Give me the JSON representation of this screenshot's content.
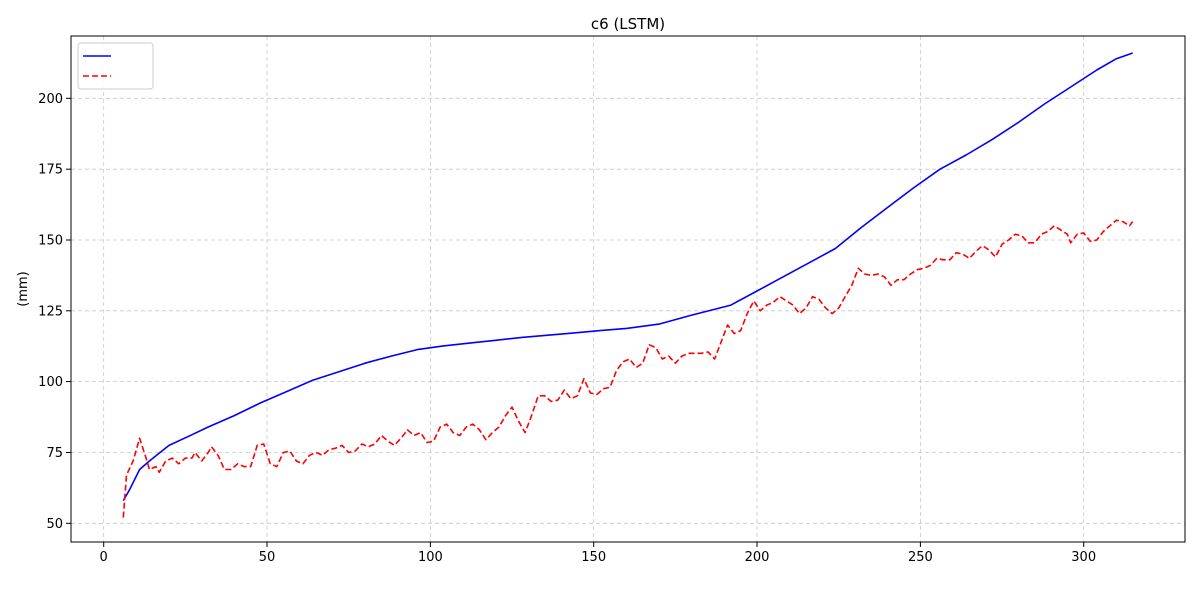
{
  "chart_data": {
    "type": "line",
    "title_prefix": "c6",
    "title_suffix": "(LSTM)",
    "xlabel": "",
    "ylabel_suffix": "(mm)",
    "xlim": [
      -10,
      331
    ],
    "ylim": [
      43.4,
      222.0
    ],
    "xticks": [
      0,
      50,
      100,
      150,
      200,
      250,
      300
    ],
    "yticks": [
      50,
      75,
      100,
      125,
      150,
      175,
      200
    ],
    "grid": true,
    "legend_position": "top-left",
    "series": [
      {
        "name": "",
        "color": "#0000ff",
        "style": "solid",
        "points": [
          [
            6,
            58
          ],
          [
            8,
            62
          ],
          [
            11,
            69
          ],
          [
            14,
            72
          ],
          [
            20,
            77.5
          ],
          [
            26,
            80.7
          ],
          [
            32,
            84
          ],
          [
            40,
            88
          ],
          [
            48,
            92.5
          ],
          [
            56,
            96.5
          ],
          [
            64,
            100.5
          ],
          [
            72,
            103.5
          ],
          [
            80,
            106.5
          ],
          [
            88,
            109
          ],
          [
            96,
            111.3
          ],
          [
            104,
            112.6
          ],
          [
            112,
            113.6
          ],
          [
            120,
            114.6
          ],
          [
            128,
            115.6
          ],
          [
            136,
            116.4
          ],
          [
            144,
            117.2
          ],
          [
            152,
            118
          ],
          [
            160,
            118.8
          ],
          [
            170,
            120.3
          ],
          [
            180,
            123.5
          ],
          [
            192,
            127
          ],
          [
            200,
            132
          ],
          [
            208,
            137
          ],
          [
            216,
            142
          ],
          [
            224,
            147
          ],
          [
            232,
            154.5
          ],
          [
            240,
            161.5
          ],
          [
            248,
            168.5
          ],
          [
            256,
            175
          ],
          [
            264,
            180
          ],
          [
            272,
            185.5
          ],
          [
            280,
            191.5
          ],
          [
            288,
            198
          ],
          [
            296,
            204
          ],
          [
            304,
            210
          ],
          [
            310,
            214
          ],
          [
            315,
            216
          ]
        ]
      },
      {
        "name": "",
        "color": "#ff0000",
        "style": "dashed",
        "points": [
          [
            6,
            52
          ],
          [
            7,
            67
          ],
          [
            9,
            72
          ],
          [
            11,
            80
          ],
          [
            13,
            73
          ],
          [
            14,
            69
          ],
          [
            16,
            70
          ],
          [
            17,
            68
          ],
          [
            19,
            72
          ],
          [
            21,
            73
          ],
          [
            23,
            71
          ],
          [
            25,
            73
          ],
          [
            27,
            73
          ],
          [
            28,
            75
          ],
          [
            30,
            72
          ],
          [
            32,
            75
          ],
          [
            33,
            77
          ],
          [
            35,
            74
          ],
          [
            37,
            69
          ],
          [
            39,
            69
          ],
          [
            41,
            71
          ],
          [
            43,
            70
          ],
          [
            45,
            70
          ],
          [
            47,
            77.5
          ],
          [
            49,
            78
          ],
          [
            51,
            71
          ],
          [
            53,
            70
          ],
          [
            55,
            75
          ],
          [
            57,
            75.5
          ],
          [
            59,
            72
          ],
          [
            61,
            71
          ],
          [
            63,
            74
          ],
          [
            65,
            75
          ],
          [
            67,
            74
          ],
          [
            69,
            76
          ],
          [
            71,
            76.5
          ],
          [
            73,
            77.5
          ],
          [
            75,
            75
          ],
          [
            77,
            75.5
          ],
          [
            79,
            78
          ],
          [
            81,
            77
          ],
          [
            83,
            78
          ],
          [
            85,
            81
          ],
          [
            87,
            79
          ],
          [
            89,
            77.5
          ],
          [
            91,
            80
          ],
          [
            93,
            83
          ],
          [
            95,
            81
          ],
          [
            97,
            82
          ],
          [
            99,
            78.5
          ],
          [
            101,
            79
          ],
          [
            103,
            84
          ],
          [
            105,
            85
          ],
          [
            107,
            82
          ],
          [
            109,
            81
          ],
          [
            111,
            84
          ],
          [
            113,
            85
          ],
          [
            115,
            83
          ],
          [
            117,
            79.5
          ],
          [
            119,
            82
          ],
          [
            121,
            84
          ],
          [
            123,
            88
          ],
          [
            125,
            91
          ],
          [
            127,
            86
          ],
          [
            129,
            82
          ],
          [
            131,
            88
          ],
          [
            133,
            95
          ],
          [
            135,
            95
          ],
          [
            137,
            93
          ],
          [
            139,
            93.5
          ],
          [
            141,
            97
          ],
          [
            143,
            94
          ],
          [
            145,
            95
          ],
          [
            147,
            101
          ],
          [
            149,
            96
          ],
          [
            151,
            95.5
          ],
          [
            153,
            97.5
          ],
          [
            155,
            98
          ],
          [
            157,
            104
          ],
          [
            159,
            107
          ],
          [
            161,
            108
          ],
          [
            163,
            105
          ],
          [
            165,
            106.5
          ],
          [
            167,
            113
          ],
          [
            169,
            112
          ],
          [
            171,
            108
          ],
          [
            173,
            109
          ],
          [
            175,
            106.5
          ],
          [
            177,
            109
          ],
          [
            179,
            110
          ],
          [
            181,
            110
          ],
          [
            183,
            110
          ],
          [
            185,
            110.5
          ],
          [
            187,
            108
          ],
          [
            189,
            114
          ],
          [
            191,
            120
          ],
          [
            193,
            117
          ],
          [
            195,
            118
          ],
          [
            197,
            124
          ],
          [
            199,
            128.5
          ],
          [
            201,
            125
          ],
          [
            203,
            127
          ],
          [
            205,
            128
          ],
          [
            207,
            130
          ],
          [
            209,
            128.5
          ],
          [
            211,
            127
          ],
          [
            213,
            124
          ],
          [
            215,
            126
          ],
          [
            217,
            130
          ],
          [
            219,
            129
          ],
          [
            221,
            126
          ],
          [
            223,
            124
          ],
          [
            225,
            126
          ],
          [
            227,
            130
          ],
          [
            229,
            134
          ],
          [
            231,
            140
          ],
          [
            233,
            138
          ],
          [
            235,
            137.5
          ],
          [
            237,
            138
          ],
          [
            239,
            137
          ],
          [
            241,
            134
          ],
          [
            243,
            136
          ],
          [
            245,
            136
          ],
          [
            247,
            138
          ],
          [
            249,
            139.5
          ],
          [
            251,
            140
          ],
          [
            253,
            141
          ],
          [
            255,
            143.5
          ],
          [
            257,
            143
          ],
          [
            259,
            143
          ],
          [
            261,
            145.5
          ],
          [
            263,
            145
          ],
          [
            265,
            143.5
          ],
          [
            267,
            146
          ],
          [
            269,
            148
          ],
          [
            271,
            146.5
          ],
          [
            273,
            144
          ],
          [
            275,
            148.5
          ],
          [
            277,
            150
          ],
          [
            279,
            152
          ],
          [
            281,
            151.5
          ],
          [
            283,
            149
          ],
          [
            285,
            149
          ],
          [
            287,
            152
          ],
          [
            289,
            153
          ],
          [
            291,
            155
          ],
          [
            293,
            153.5
          ],
          [
            295,
            152
          ],
          [
            296,
            149
          ],
          [
            298,
            152
          ],
          [
            300,
            152.5
          ],
          [
            302,
            149.5
          ],
          [
            304,
            150
          ],
          [
            306,
            153
          ],
          [
            308,
            155
          ],
          [
            310,
            157
          ],
          [
            312,
            156.5
          ],
          [
            314,
            155
          ],
          [
            315,
            156.5
          ]
        ]
      }
    ]
  }
}
